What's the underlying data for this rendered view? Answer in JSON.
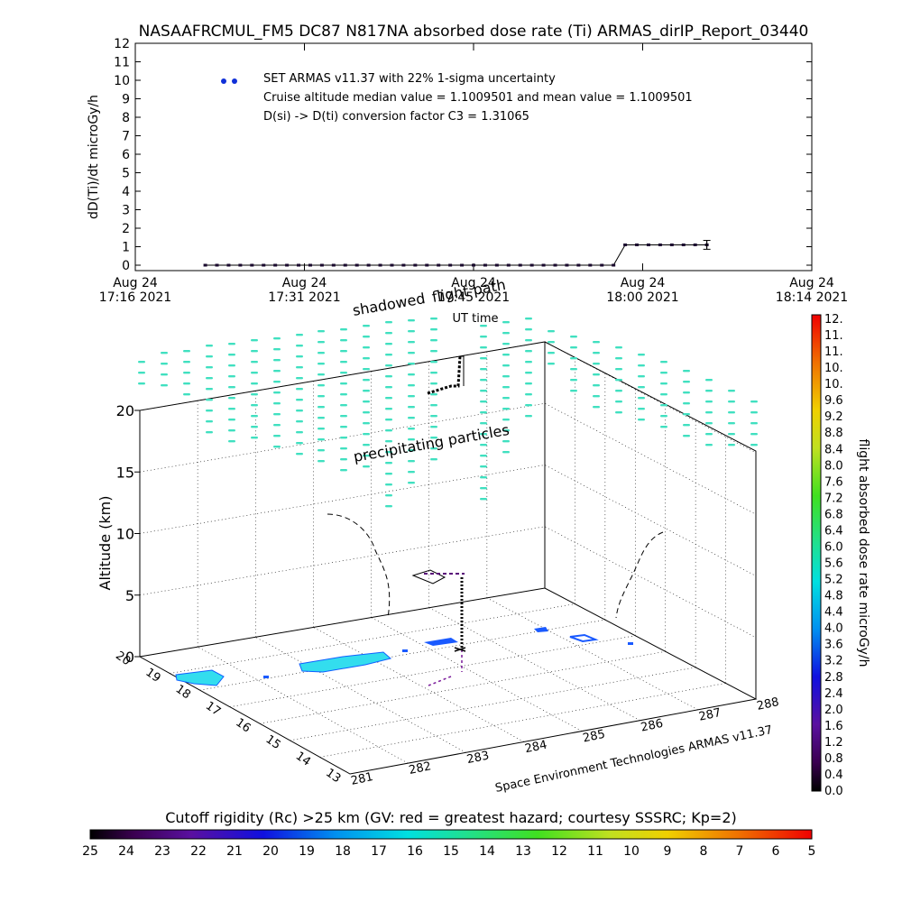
{
  "title": "NASAAFRCMUL_FM5 DC87 N817NA absorbed dose rate (Ti) ARMAS_dirIP_Report_03440",
  "chart_data": [
    {
      "type": "line",
      "title": "NASAAFRCMUL_FM5 DC87 N817NA absorbed dose rate (Ti) ARMAS_dirIP_Report_03440",
      "ylabel": "dD(Ti)/dt microGy/h",
      "xlabel": "UT time",
      "ylim": [
        0,
        12
      ],
      "xlim_minutes": [
        0,
        58
      ],
      "y_ticks": [
        "0",
        "1",
        "2",
        "3",
        "4",
        "5",
        "6",
        "7",
        "8",
        "9",
        "10",
        "11",
        "12"
      ],
      "x_ticks": [
        {
          "top": "Aug 24",
          "bottom": "17:16 2021"
        },
        {
          "top": "Aug 24",
          "bottom": "17:31 2021"
        },
        {
          "top": "Aug 24",
          "bottom": "17:45 2021"
        },
        {
          "top": "Aug 24",
          "bottom": "18:00 2021"
        },
        {
          "top": "Aug 24",
          "bottom": "18:14 2021"
        }
      ],
      "legend_marker_color": "#1030d8",
      "legend": [
        "SET ARMAS v11.37 with 22% 1-sigma uncertainty",
        "Cruise altitude median value = 1.1009501 and mean value = 1.1009501",
        "D(si) -> D(ti) conversion factor C3 = 1.31065"
      ],
      "series": [
        {
          "x": [
            6.0,
            7.0,
            8.0,
            9.0,
            10.0,
            11.0,
            12.0,
            13.0,
            14.0,
            15.0,
            16.0,
            17.0,
            18.0,
            19.0,
            20.0,
            21.0,
            22.0,
            23.0,
            24.0,
            25.0,
            26.0,
            27.0,
            28.0,
            29.0,
            30.0,
            31.0,
            32.0,
            33.0,
            34.0,
            35.0,
            36.0,
            37.0,
            38.0,
            39.0,
            40.0,
            41.0,
            42.0,
            43.0,
            44.0,
            45.0,
            46.0,
            47.0,
            48.0,
            49.0
          ],
          "y": [
            0,
            0,
            0,
            0,
            0,
            0,
            0,
            0,
            0,
            0,
            0,
            0,
            0,
            0,
            0,
            0,
            0,
            0,
            0,
            0,
            0,
            0,
            0,
            0,
            0,
            0,
            0,
            0,
            0,
            0,
            0,
            0,
            0,
            0,
            0,
            0,
            1.1,
            1.1,
            1.1,
            1.1,
            1.1,
            1.1,
            1.1,
            1.1
          ],
          "error": 0.24,
          "color": "#1a0a2e"
        }
      ]
    },
    {
      "type": "scatter",
      "title": "",
      "x_axis_label": "",
      "y_axis_label": "",
      "z_axis_label": "Altitude (km)",
      "z_ticks": [
        "0",
        "5",
        "10",
        "15",
        "20"
      ],
      "x_ticks": [
        "281",
        "282",
        "283",
        "284",
        "285",
        "286",
        "287",
        "288"
      ],
      "y_ticks": [
        "13",
        "14",
        "15",
        "16",
        "17",
        "18",
        "19",
        "20"
      ],
      "annotations": [
        "shadowed",
        "flight path",
        "precipitating particles"
      ],
      "credit": "Space Environment Technologies ARMAS v11.37",
      "colorbar_label": "flight absorbed dose rate microGy/h",
      "colorbar_ticks": [
        "12.",
        "11.",
        "11.",
        "10.",
        "10.",
        "9.6",
        "9.2",
        "8.8",
        "8.4",
        "8.0",
        "7.6",
        "7.2",
        "6.8",
        "6.4",
        "6.0",
        "5.6",
        "5.2",
        "4.8",
        "4.4",
        "4.0",
        "3.6",
        "3.2",
        "2.8",
        "2.4",
        "2.0",
        "1.6",
        "1.2",
        "0.8",
        "0.4",
        "0.0"
      ],
      "particle_color": "#40e0c0",
      "rc_patch_color": "#33ddee"
    },
    {
      "type": "heatmap",
      "title": "Cutoff rigidity (Rc) >25 km (GV: red = greatest hazard; courtesy SSSRC; Kp=2)",
      "ticks": [
        "25",
        "24",
        "23",
        "22",
        "21",
        "20",
        "19",
        "18",
        "17",
        "16",
        "15",
        "14",
        "13",
        "12",
        "11",
        "10",
        "9",
        "8",
        "7",
        "6",
        "5"
      ]
    }
  ]
}
